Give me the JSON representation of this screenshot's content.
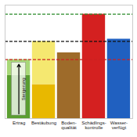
{
  "chart_data": {
    "type": "bar",
    "stacked": true,
    "categories": [
      "Ertrag",
      "Bestäubung",
      "Boden-\nqualität",
      "Schädlings-\nkontrolle",
      "Wasser-\nverfügt"
    ],
    "series": [
      {
        "values": [
          0.38,
          0.3,
          0.58,
          0.92,
          0.7
        ],
        "colors": [
          "#5a9e30",
          "#e8b800",
          "#9e6b2a",
          "#d42020",
          "#2060c0"
        ]
      },
      {
        "values": [
          0.14,
          0.38,
          null,
          null,
          null
        ],
        "colors": [
          "#a8d878",
          "#f5e870",
          null,
          null,
          null
        ]
      }
    ],
    "ylim": [
      0,
      1
    ],
    "tick_labels": "x",
    "grid": false,
    "reference_lines": [
      {
        "value": 0.92,
        "color": "#2a8a2a",
        "line_style": "dashed"
      },
      {
        "value": 0.68,
        "color": "#111111",
        "line_style": "dashed"
      },
      {
        "value": 0.52,
        "color": "#cc2020",
        "line_style": "dashed"
      }
    ],
    "annotations": [
      {
        "text": "Steigerung",
        "category": "Ertrag",
        "from": 0,
        "to": 0.52
      }
    ]
  }
}
